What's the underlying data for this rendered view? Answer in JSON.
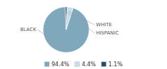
{
  "chart_data": {
    "type": "pie",
    "categories": [
      "BLACK",
      "WHITE",
      "HISPANIC"
    ],
    "values": [
      94.4,
      4.4,
      1.1
    ],
    "value_labels": [
      "94.4%",
      "4.4%",
      "1.1%"
    ],
    "colors": [
      "#7fa8bc",
      "#c8dde8",
      "#2a4a6b"
    ],
    "legend": "bottom"
  }
}
